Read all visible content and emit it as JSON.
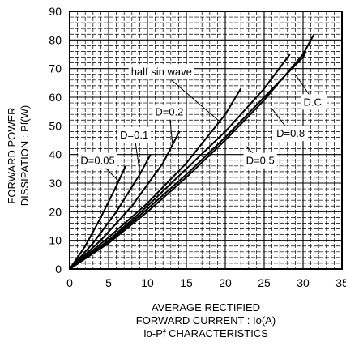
{
  "chart_data": {
    "type": "line",
    "title": "",
    "xlabel_lines": [
      "AVERAGE RECTIFIED",
      "FORWARD CURRENT : Io(A)"
    ],
    "ylabel_lines": [
      "FORWARD POWER",
      "DISSIPATION : Pf(W)"
    ],
    "caption": "Io-Pf CHARACTERISTICS",
    "xlim": [
      0,
      35
    ],
    "ylim": [
      0,
      90
    ],
    "xticks": [
      0,
      5,
      10,
      15,
      20,
      25,
      30,
      35
    ],
    "yticks": [
      0,
      10,
      20,
      30,
      40,
      50,
      60,
      70,
      80,
      90
    ],
    "grid": true,
    "series": [
      {
        "name": "D=0.05",
        "x": [
          0,
          2,
          4,
          6,
          7.2
        ],
        "y": [
          0,
          8,
          18,
          29,
          36
        ]
      },
      {
        "name": "D=0.1",
        "x": [
          0,
          3,
          6,
          9,
          10.4
        ],
        "y": [
          0,
          9,
          20,
          33,
          40
        ]
      },
      {
        "name": "D=0.2",
        "x": [
          0,
          4,
          8,
          12,
          14.1
        ],
        "y": [
          0,
          10,
          22,
          37,
          48
        ]
      },
      {
        "name": "half sin wave",
        "x": [
          0,
          5,
          10,
          15,
          20,
          22
        ],
        "y": [
          0,
          11,
          23,
          37,
          54,
          63
        ]
      },
      {
        "name": "D=0.5",
        "x": [
          0,
          5,
          10,
          15,
          20,
          25,
          28.3
        ],
        "y": [
          0,
          10,
          22,
          35,
          48,
          63,
          75
        ]
      },
      {
        "name": "D=0.8",
        "x": [
          0,
          5,
          10,
          15,
          20,
          25,
          30,
          30.4
        ],
        "y": [
          0,
          9.5,
          21,
          33,
          46,
          60,
          74,
          76
        ]
      },
      {
        "name": "D.C.",
        "x": [
          0,
          5,
          10,
          15,
          20,
          25,
          30,
          31.4
        ],
        "y": [
          0,
          9,
          20,
          32,
          45,
          59,
          75,
          82
        ]
      }
    ],
    "annotations": [
      {
        "text": "half sin wave",
        "x": 11.8,
        "y": 69,
        "target_x": 19.5,
        "target_y": 51
      },
      {
        "text": "D=0.2",
        "x": 12.8,
        "y": 55,
        "target_x": 13.2,
        "target_y": 44
      },
      {
        "text": "D=0.1",
        "x": 8.3,
        "y": 47,
        "target_x": 9.0,
        "target_y": 34
      },
      {
        "text": "D=0.05",
        "x": 3.6,
        "y": 38,
        "target_x": 6.2,
        "target_y": 31
      },
      {
        "text": "D.C.",
        "x": 31.4,
        "y": 58.5,
        "target_x": 29.0,
        "target_y": 68
      },
      {
        "text": "D=0.8",
        "x": 28.4,
        "y": 47.5,
        "target_x": 26.0,
        "target_y": 56
      },
      {
        "text": "D=0.5",
        "x": 24.5,
        "y": 38,
        "target_x": 22.6,
        "target_y": 43
      }
    ]
  }
}
